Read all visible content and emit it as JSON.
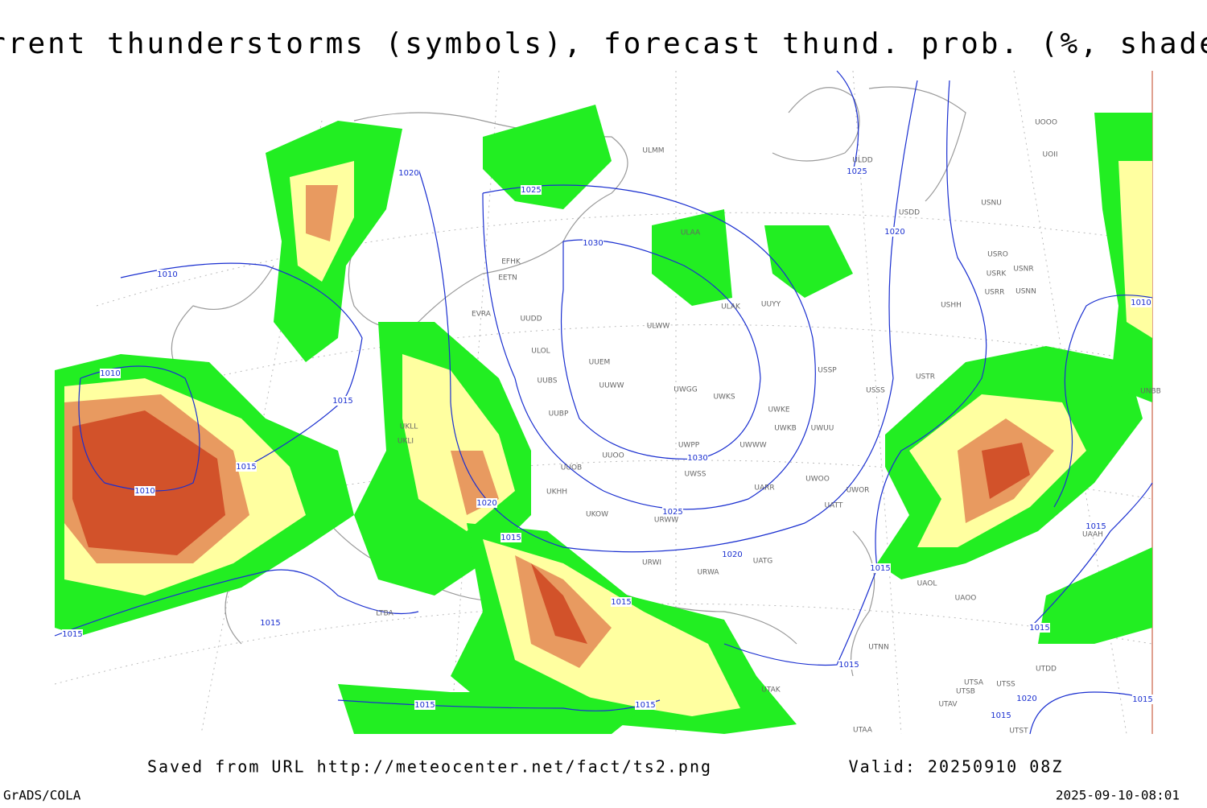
{
  "title": "Current thunderstorms (symbols), forecast thund. prob. (%, shaded)",
  "footer": {
    "saved": "Saved from URL http://meteocenter.net/fact/ts2.png",
    "valid": "Valid: 20250910 08Z",
    "software": "GrADS/COLA",
    "timestamp": "2025-09-10-08:01"
  },
  "isobar_labels": [
    "1020",
    "1025",
    "1030",
    "1025",
    "1020",
    "1010",
    "1010",
    "1015",
    "1015",
    "1010",
    "1020",
    "1015",
    "1030",
    "1025",
    "1020",
    "1015",
    "1015",
    "1015",
    "1015",
    "1015",
    "1015",
    "1015",
    "1015",
    "1010",
    "1015",
    "1020",
    "1015",
    "1015"
  ],
  "stations": [
    "ULMM",
    "ULAA",
    "ULDD",
    "USDD",
    "USNU",
    "UOOO",
    "UOII",
    "USRO",
    "USRK",
    "USNR",
    "USRR",
    "USNN",
    "USHH",
    "ULWW",
    "ULAK",
    "UUYY",
    "EFHK",
    "EETN",
    "EVRA",
    "UUEM",
    "UUWW",
    "UWGG",
    "UWKS",
    "USSP",
    "USTR",
    "USSS",
    "UWKE",
    "UWKB",
    "UWUU",
    "UWPP",
    "UWWW",
    "UUOO",
    "UUBP",
    "UUOB",
    "UWSS",
    "UUBS",
    "UUDD",
    "ULOL",
    "UKHH",
    "UKOW",
    "URWW",
    "URWI",
    "URWA",
    "UATG",
    "UARR",
    "UWOO",
    "UWOR",
    "UATT",
    "UAOL",
    "UAOO",
    "UTNN",
    "UTAK",
    "UTAA",
    "UTSA",
    "UTSS",
    "UTSB",
    "UTAV",
    "UTST",
    "UTDD",
    "UAAH",
    "UNBB",
    "LTBA",
    "UKLL",
    "UKLI"
  ]
}
